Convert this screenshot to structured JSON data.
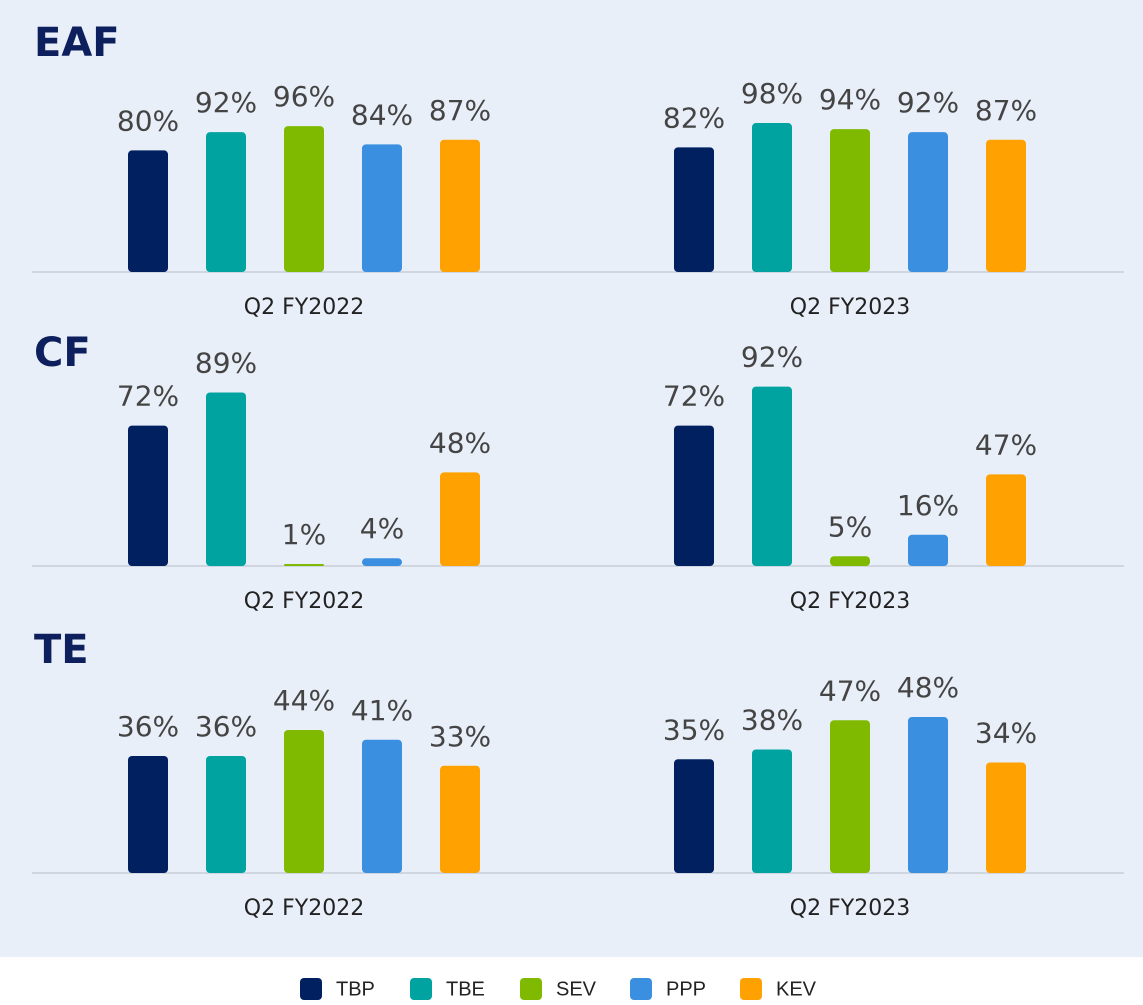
{
  "chart_data": [
    {
      "type": "bar",
      "title": "EAF",
      "categories": [
        "Q2 FY2022",
        "Q2 FY2023"
      ],
      "ylim": [
        0,
        100
      ],
      "series": [
        {
          "name": "TBP",
          "color": "#002060",
          "values": [
            80,
            82
          ],
          "value_labels": [
            "80%",
            "82%"
          ]
        },
        {
          "name": "TBE",
          "color": "#00a3a0",
          "values": [
            92,
            98
          ],
          "value_labels": [
            "92%",
            "98%"
          ]
        },
        {
          "name": "SEV",
          "color": "#7fba00",
          "values": [
            96,
            94
          ],
          "value_labels": [
            "96%",
            "94%"
          ]
        },
        {
          "name": "PPP",
          "color": "#3b8fe0",
          "values": [
            84,
            92
          ],
          "value_labels": [
            "84%",
            "92%"
          ]
        },
        {
          "name": "KEV",
          "color": "#ffa100",
          "values": [
            87,
            87
          ],
          "value_labels": [
            "87%",
            "87%"
          ]
        }
      ]
    },
    {
      "type": "bar",
      "title": "CF",
      "categories": [
        "Q2 FY2022",
        "Q2 FY2023"
      ],
      "ylim": [
        0,
        100
      ],
      "series": [
        {
          "color": "#002060",
          "values": [
            72,
            72
          ],
          "value_labels": [
            "72%",
            "72%"
          ]
        },
        {
          "color": "#00a3a0",
          "values": [
            89,
            92
          ],
          "value_labels": [
            "89%",
            "92%"
          ]
        },
        {
          "color": "#7fba00",
          "values": [
            1,
            5
          ],
          "value_labels": [
            "1%",
            "5%"
          ]
        },
        {
          "color": "#3b8fe0",
          "values": [
            4,
            16
          ],
          "value_labels": [
            "4%",
            "16%"
          ]
        },
        {
          "color": "#ffa100",
          "values": [
            48,
            47
          ],
          "value_labels": [
            "48%",
            "47%"
          ]
        }
      ]
    },
    {
      "type": "bar",
      "title": "TE",
      "categories": [
        "Q2 FY2022",
        "Q2 FY2023"
      ],
      "ylim": [
        0,
        60
      ],
      "series": [
        {
          "color": "#002060",
          "values": [
            36,
            35
          ],
          "value_labels": [
            "36%",
            "35%"
          ]
        },
        {
          "color": "#00a3a0",
          "values": [
            36,
            38
          ],
          "value_labels": [
            "36%",
            "38%"
          ]
        },
        {
          "color": "#7fba00",
          "values": [
            44,
            47
          ],
          "value_labels": [
            "44%",
            "47%"
          ]
        },
        {
          "color": "#3b8fe0",
          "values": [
            41,
            48
          ],
          "value_labels": [
            "41%",
            "48%"
          ]
        },
        {
          "color": "#ffa100",
          "values": [
            33,
            34
          ],
          "value_labels": [
            "33%",
            "34%"
          ]
        }
      ]
    }
  ]
}
